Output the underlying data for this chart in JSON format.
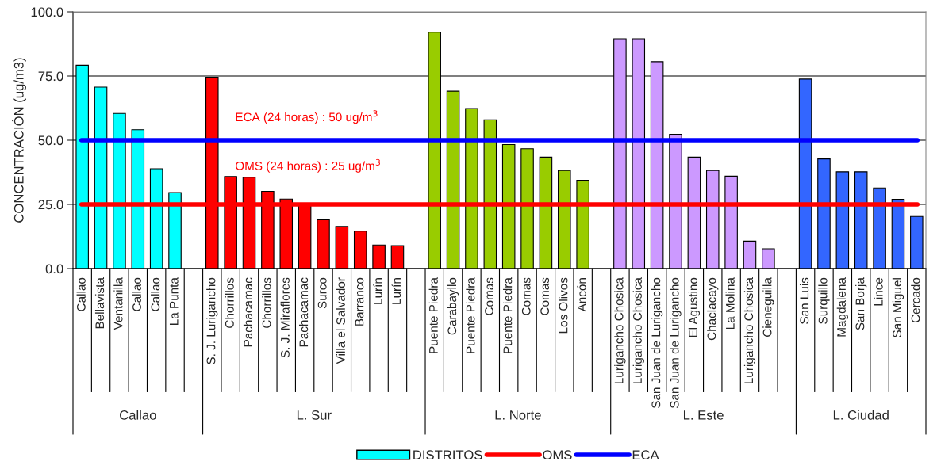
{
  "chart_data": {
    "type": "bar",
    "ylabel": "CONCENTRACIÓN (ug/m3)",
    "categories": [
      "Callao",
      "Bellavista",
      "Ventanilla",
      "Callao",
      "Callao",
      "La Punta",
      null,
      "S. J. Lurigancho",
      "Chorrillos",
      "Pachacamac",
      "Chorrillos",
      "S. J. Miraflores",
      "Pachacamac",
      "Surco",
      "Villa el Salvador",
      "Barranco",
      "Lurín",
      "Lurín",
      null,
      "Puente Piedra",
      "Carabayllo",
      "Puente Piedra",
      "Comas",
      "Puente Piedra",
      "Comas",
      "Comas",
      "Los Olivos",
      "Ancón",
      null,
      "Lurigancho Chosica",
      "Lurigancho Chosica",
      "San Juan de Lurigancho",
      "San Juan de Lurigancho",
      "El Agustino",
      "Chaclacayo",
      "La Molina",
      "Lurigancho Chosica",
      "Cieneguilla",
      null,
      "San Luis",
      "Surquillo",
      "Magdalena",
      "San Borja",
      "Lince",
      "San Miguel",
      "Cercado"
    ],
    "series": [
      {
        "name": "DISTRITOS",
        "color": "#00ffff",
        "values": [
          79.2,
          70.7,
          60.4,
          54.1,
          38.9,
          29.6,
          null,
          74.5,
          35.9,
          35.6,
          30.1,
          27.1,
          25.0,
          19.0,
          16.4,
          14.6,
          9.2,
          8.9,
          null,
          92.1,
          69.1,
          62.3,
          57.9,
          48.3,
          46.7,
          43.4,
          38.2,
          34.4,
          null,
          89.5,
          89.5,
          80.6,
          52.3,
          43.4,
          38.2,
          36.0,
          10.7,
          7.7,
          null,
          73.8,
          42.7,
          37.7,
          37.7,
          31.4,
          27.0,
          20.3
        ],
        "colors": [
          "#00ffff",
          "#00ffff",
          "#00ffff",
          "#00ffff",
          "#00ffff",
          "#00ffff",
          null,
          "#ff0000",
          "#ff0000",
          "#ff0000",
          "#ff0000",
          "#ff0000",
          "#ff0000",
          "#ff0000",
          "#ff0000",
          "#ff0000",
          "#ff0000",
          "#ff0000",
          null,
          "#99cc00",
          "#99cc00",
          "#99cc00",
          "#99cc00",
          "#99cc00",
          "#99cc00",
          "#99cc00",
          "#99cc00",
          "#99cc00",
          null,
          "#cc99ff",
          "#cc99ff",
          "#cc99ff",
          "#cc99ff",
          "#cc99ff",
          "#cc99ff",
          "#cc99ff",
          "#cc99ff",
          "#cc99ff",
          null,
          "#3366ff",
          "#3366ff",
          "#3366ff",
          "#3366ff",
          "#3366ff",
          "#3366ff",
          "#3366ff"
        ]
      }
    ],
    "ylim": [
      0,
      100
    ],
    "yticks": [
      {
        "value": 0,
        "label": "0.0"
      },
      {
        "value": 25,
        "label": "25.0"
      },
      {
        "value": 50,
        "label": "50.0"
      },
      {
        "value": 75,
        "label": "75.0"
      },
      {
        "value": 100,
        "label": "100.0"
      }
    ],
    "grid": "y",
    "ref_lines": [
      {
        "axis": "y",
        "value": 25,
        "label": "OMS",
        "color": "#ff0000"
      },
      {
        "axis": "y",
        "value": 50,
        "label": "ECA",
        "color": "#0000ff"
      }
    ],
    "annotations": [
      "Callao",
      "L. Sur",
      "L. Norte",
      "L. Este",
      "L. Ciudad",
      "ECA (24 horas) : 50 ug/m$^{3}$",
      "OMS (24 horas) : 25 ug/m$^{3}$"
    ],
    "legend": "bottom"
  }
}
